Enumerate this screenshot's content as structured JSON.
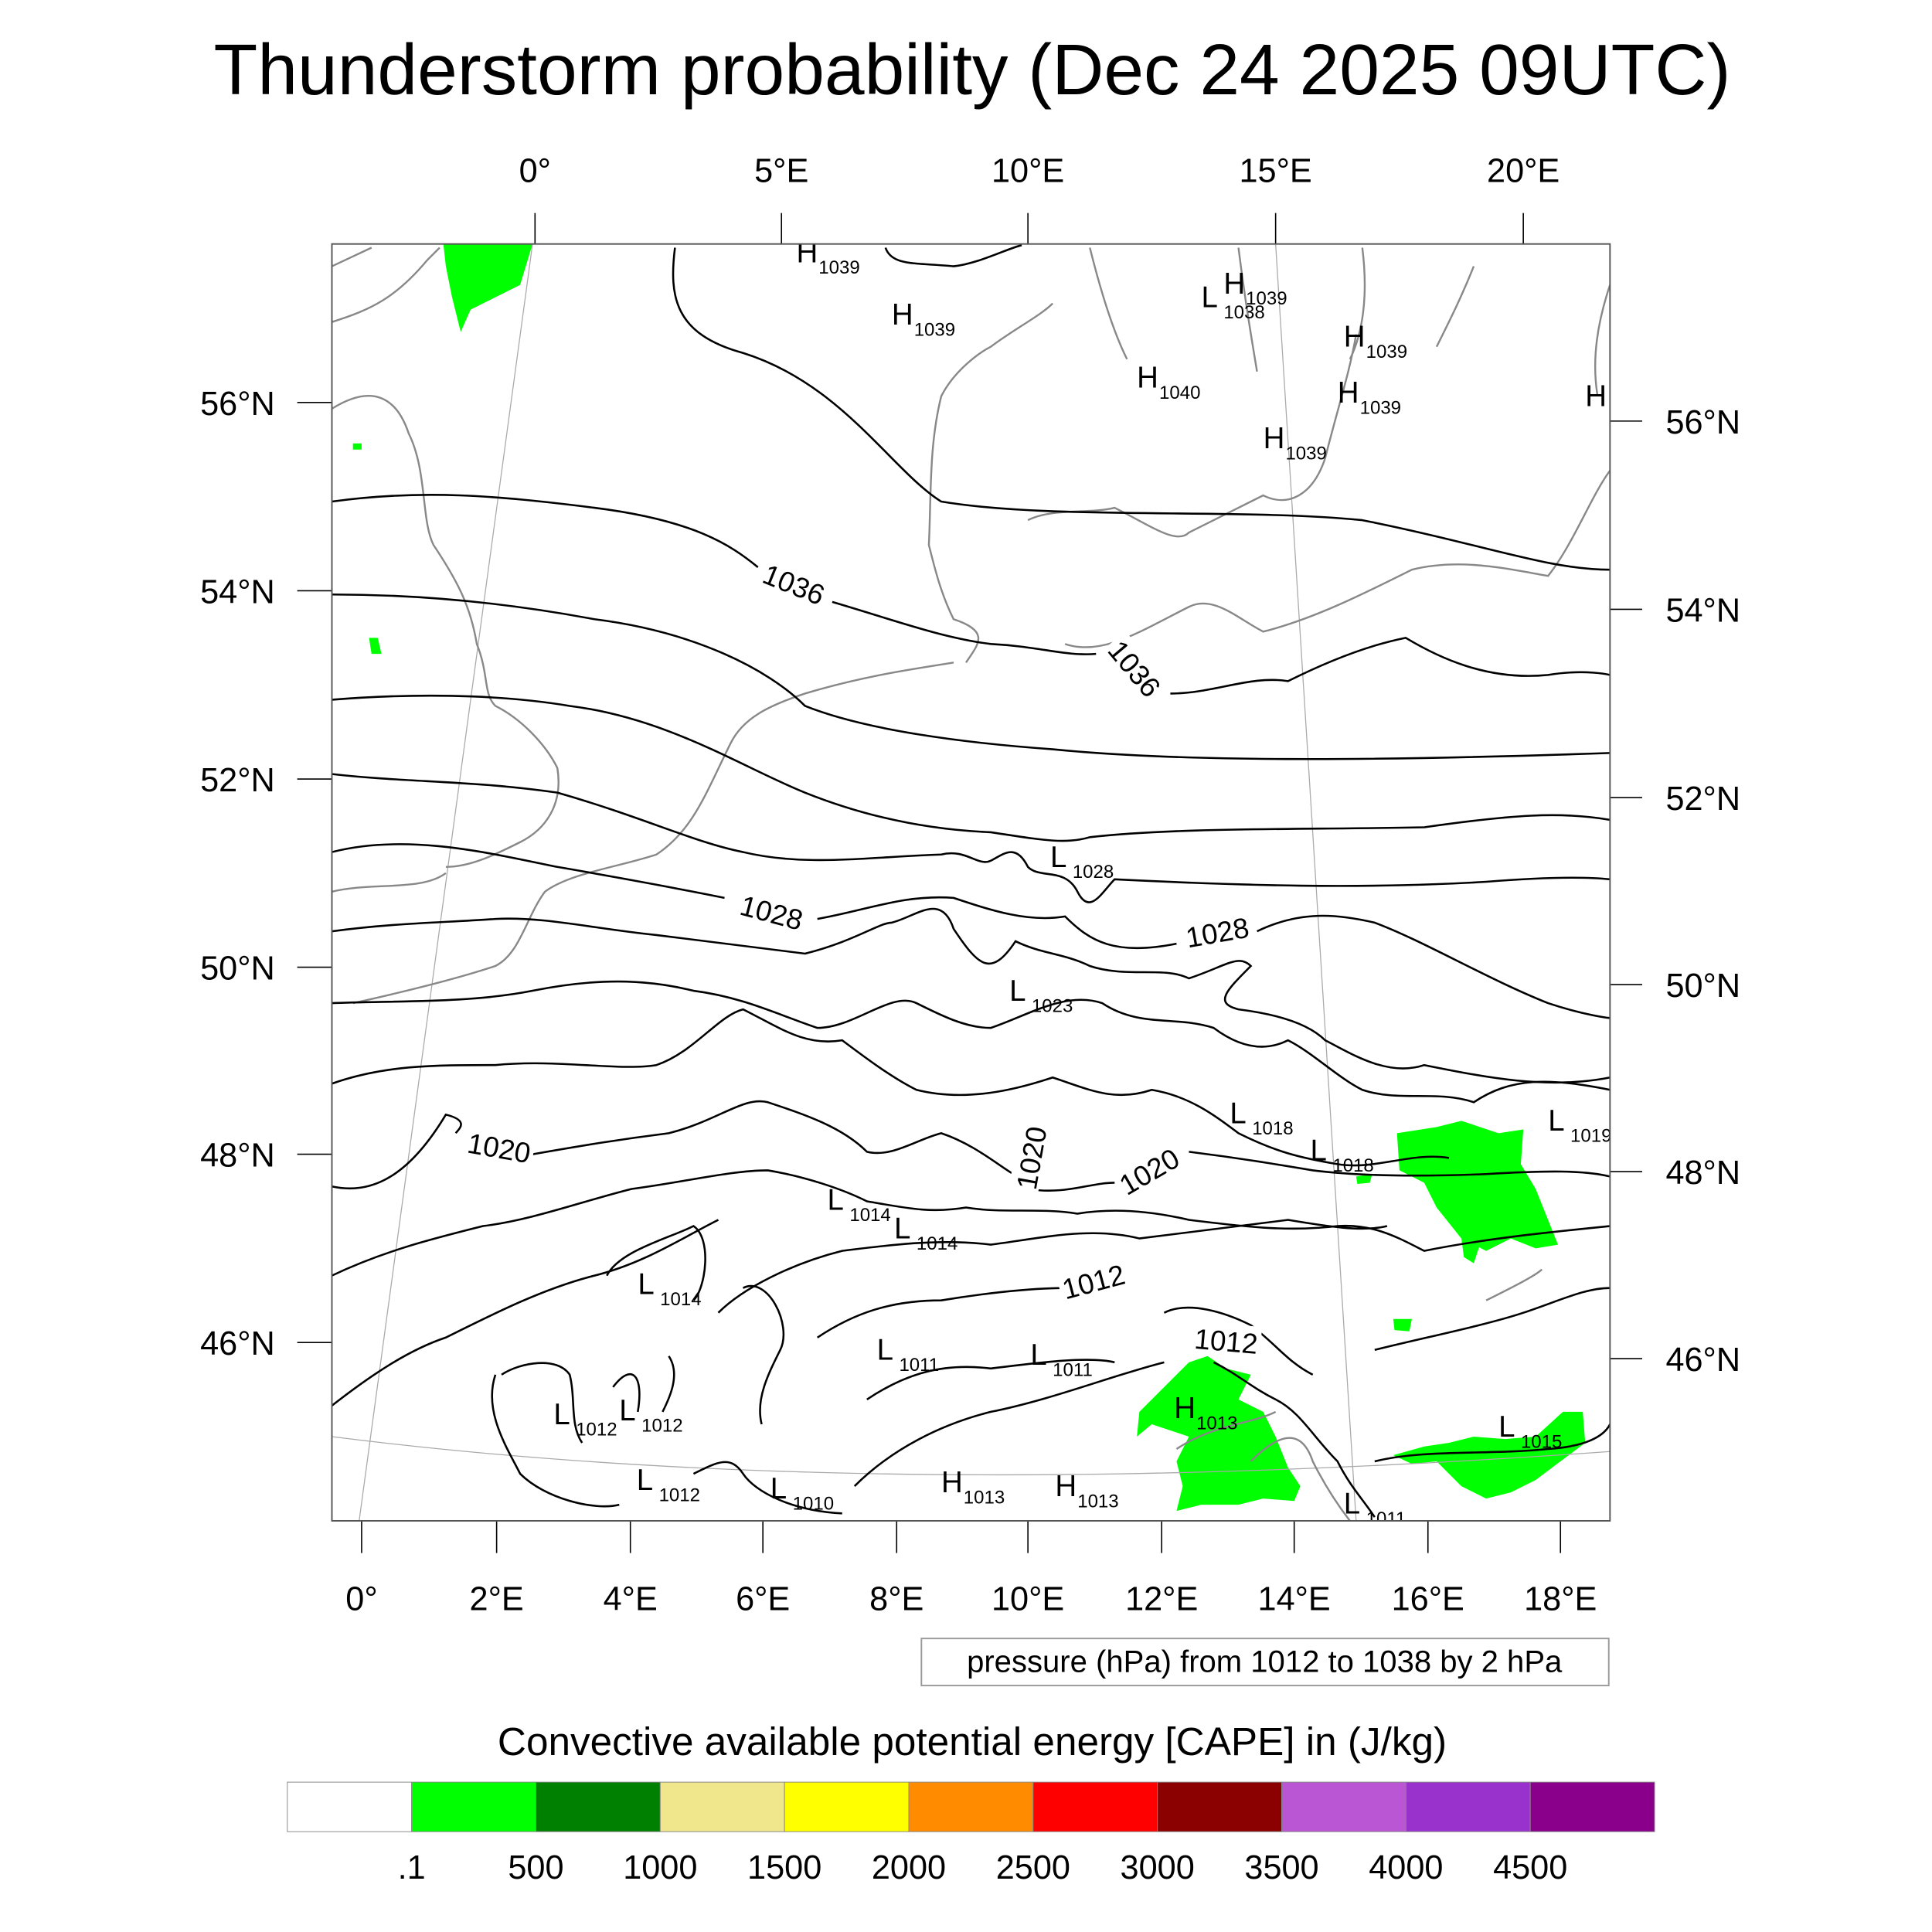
{
  "title": "Thunderstorm probability (Dec 24 2025 09UTC)",
  "top_lon_labels": [
    "0°",
    "5°E",
    "10°E",
    "15°E",
    "20°E"
  ],
  "left_lat_labels": [
    "56°N",
    "54°N",
    "52°N",
    "50°N",
    "48°N",
    "46°N"
  ],
  "right_lat_labels": [
    "56°N",
    "54°N",
    "52°N",
    "50°N",
    "48°N",
    "46°N"
  ],
  "bottom_lon_labels": [
    "0°",
    "2°E",
    "4°E",
    "6°E",
    "8°E",
    "10°E",
    "12°E",
    "14°E",
    "16°E",
    "18°E"
  ],
  "pressure_info": "pressure (hPa) from 1012 to 1038 by 2 hPa",
  "pressure_centers": [
    {
      "type": "H",
      "value": "1039"
    },
    {
      "type": "H",
      "value": "1039"
    },
    {
      "type": "L",
      "value": "1038"
    },
    {
      "type": "H",
      "value": "1039"
    },
    {
      "type": "H",
      "value": "1039"
    },
    {
      "type": "H",
      "value": "1040"
    },
    {
      "type": "H",
      "value": "1039"
    },
    {
      "type": "H",
      "value": ""
    },
    {
      "type": "H",
      "value": "1039"
    },
    {
      "type": "L",
      "value": "1028"
    },
    {
      "type": "L",
      "value": "1023"
    },
    {
      "type": "L",
      "value": "1018"
    },
    {
      "type": "L",
      "value": "1018"
    },
    {
      "type": "L",
      "value": "1019"
    },
    {
      "type": "L",
      "value": "1014"
    },
    {
      "type": "L",
      "value": "1014"
    },
    {
      "type": "L",
      "value": "1014"
    },
    {
      "type": "L",
      "value": "1011"
    },
    {
      "type": "L",
      "value": "1011"
    },
    {
      "type": "H",
      "value": "1013"
    },
    {
      "type": "L",
      "value": "1012"
    },
    {
      "type": "L",
      "value": "1012"
    },
    {
      "type": "L",
      "value": "1015"
    },
    {
      "type": "L",
      "value": "1012"
    },
    {
      "type": "L",
      "value": "1010"
    },
    {
      "type": "H",
      "value": "1013"
    },
    {
      "type": "H",
      "value": "1013"
    },
    {
      "type": "L",
      "value": "1011"
    }
  ],
  "isobar_labels": [
    "1036",
    "1036",
    "1028",
    "1028",
    "1020",
    "1020",
    "1020",
    "1012",
    "1012"
  ],
  "colorbar": {
    "title": "Convective available potential energy [CAPE] in (J/kg)",
    "colors": [
      "#ffffff",
      "#00ff00",
      "#008000",
      "#f0e68c",
      "#ffff00",
      "#ff8c00",
      "#ff0000",
      "#8b0000",
      "#ba55d3",
      "#9932cc",
      "#8b008b"
    ],
    "labels": [
      ".1",
      "500",
      "1000",
      "1500",
      "2000",
      "2500",
      "3000",
      "3500",
      "4000",
      "4500"
    ]
  },
  "cape_color": "#00ff00"
}
